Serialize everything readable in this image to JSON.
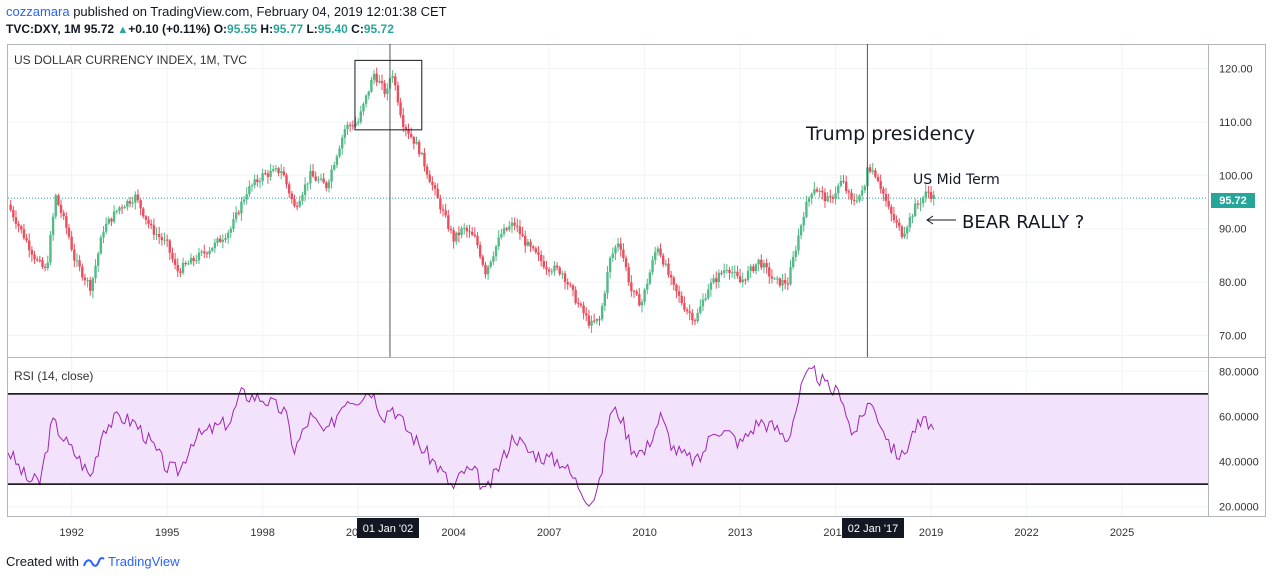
{
  "header": {
    "user": "cozzamara",
    "published": "published on TradingView.com, February 04, 2019 12:01:38 CET",
    "symbol": "TVC:DXY, 1M",
    "last": "95.72",
    "change": "+0.10 (+0.11%)",
    "o_label": "O:",
    "o": "95.55",
    "h_label": "H:",
    "h": "95.77",
    "l_label": "L:",
    "l": "95.40",
    "c_label": "C:",
    "c": "95.72"
  },
  "footer": {
    "created": "Created with",
    "brand": "TradingView"
  },
  "colors": {
    "up": "#53b987",
    "down": "#eb4d5c",
    "rsi": "#9c27b0",
    "rsi_band": "#f3e2fb",
    "price_line": "#26a69a",
    "price_tag": "#26a69a"
  },
  "chart_data": [
    {
      "type": "candlestick",
      "title": "US DOLLAR CURRENCY INDEX, 1M, TVC",
      "ylim": [
        66,
        124
      ],
      "yticks": [
        "70.00",
        "80.00",
        "90.00",
        "100.00",
        "110.00",
        "120.00"
      ],
      "last_price_label": "95.72",
      "last_price": 95.72,
      "x_range": [
        1990.0,
        2027.7
      ],
      "xticks": [
        "1992",
        "1995",
        "1998",
        "2001",
        "2004",
        "2007",
        "2010",
        "2013",
        "2016",
        "2019",
        "2022",
        "2025"
      ],
      "anchors": [
        [
          1990.0,
          94.5
        ],
        [
          1990.9,
          84
        ],
        [
          1991.2,
          82
        ],
        [
          1991.5,
          96
        ],
        [
          1991.9,
          89
        ],
        [
          1992.1,
          84
        ],
        [
          1992.6,
          79
        ],
        [
          1993.0,
          90
        ],
        [
          1993.5,
          94
        ],
        [
          1994.0,
          96
        ],
        [
          1994.5,
          90
        ],
        [
          1995.0,
          87
        ],
        [
          1995.3,
          82
        ],
        [
          1995.8,
          84
        ],
        [
          1996.5,
          87
        ],
        [
          1997.0,
          90
        ],
        [
          1997.5,
          97
        ],
        [
          1998.0,
          100
        ],
        [
          1998.6,
          101
        ],
        [
          1999.0,
          94
        ],
        [
          1999.5,
          100
        ],
        [
          2000.0,
          98
        ],
        [
          2000.6,
          109
        ],
        [
          2001.0,
          110
        ],
        [
          2001.5,
          119
        ],
        [
          2001.9,
          115
        ],
        [
          2002.05,
          120
        ],
        [
          2002.4,
          110
        ],
        [
          2002.9,
          105
        ],
        [
          2003.4,
          97
        ],
        [
          2004.0,
          88
        ],
        [
          2004.3,
          90
        ],
        [
          2004.7,
          88
        ],
        [
          2005.0,
          82
        ],
        [
          2005.5,
          89
        ],
        [
          2005.9,
          91
        ],
        [
          2006.3,
          87
        ],
        [
          2006.9,
          83
        ],
        [
          2007.4,
          82
        ],
        [
          2007.9,
          76
        ],
        [
          2008.3,
          72
        ],
        [
          2008.6,
          73
        ],
        [
          2008.9,
          84
        ],
        [
          2009.2,
          88
        ],
        [
          2009.6,
          78
        ],
        [
          2009.9,
          76
        ],
        [
          2010.4,
          87
        ],
        [
          2010.9,
          79
        ],
        [
          2011.3,
          75
        ],
        [
          2011.6,
          73
        ],
        [
          2012.0,
          79
        ],
        [
          2012.6,
          83
        ],
        [
          2013.0,
          80
        ],
        [
          2013.6,
          84
        ],
        [
          2014.1,
          80
        ],
        [
          2014.5,
          80
        ],
        [
          2015.0,
          93
        ],
        [
          2015.3,
          98
        ],
        [
          2015.8,
          95
        ],
        [
          2016.2,
          99
        ],
        [
          2016.5,
          95
        ],
        [
          2016.9,
          97
        ],
        [
          2017.0,
          102
        ],
        [
          2017.3,
          100
        ],
        [
          2017.7,
          93
        ],
        [
          2018.1,
          89
        ],
        [
          2018.5,
          94
        ],
        [
          2018.9,
          97
        ],
        [
          2019.1,
          95.72
        ]
      ],
      "annotations": {
        "trump": "Trump presidency",
        "midterm": "US Mid Term",
        "bear": "BEAR RALLY ?"
      },
      "crosshair_labels": [
        "01 Jan '02",
        "02 Jan '17"
      ]
    },
    {
      "type": "line",
      "title": "RSI (14, close)",
      "ylim": [
        15,
        85
      ],
      "yticks": [
        "20.0000",
        "40.0000",
        "60.0000",
        "80.0000"
      ],
      "bands": [
        30,
        70
      ],
      "anchors": [
        [
          1990.0,
          45
        ],
        [
          1990.6,
          32
        ],
        [
          1991.0,
          31
        ],
        [
          1991.4,
          58
        ],
        [
          1991.9,
          47
        ],
        [
          1992.2,
          42
        ],
        [
          1992.6,
          33
        ],
        [
          1993.0,
          55
        ],
        [
          1993.5,
          60
        ],
        [
          1994.0,
          57
        ],
        [
          1994.5,
          48
        ],
        [
          1995.0,
          37
        ],
        [
          1995.4,
          36
        ],
        [
          1995.8,
          50
        ],
        [
          1996.5,
          55
        ],
        [
          1997.0,
          58
        ],
        [
          1997.3,
          70
        ],
        [
          1998.0,
          68
        ],
        [
          1998.7,
          62
        ],
        [
          1999.0,
          45
        ],
        [
          1999.5,
          60
        ],
        [
          2000.0,
          52
        ],
        [
          2000.6,
          68
        ],
        [
          2001.0,
          68
        ],
        [
          2001.4,
          72
        ],
        [
          2001.8,
          60
        ],
        [
          2002.05,
          65
        ],
        [
          2002.5,
          55
        ],
        [
          2003.0,
          46
        ],
        [
          2003.5,
          38
        ],
        [
          2004.0,
          28
        ],
        [
          2004.3,
          36
        ],
        [
          2004.7,
          35
        ],
        [
          2005.0,
          26
        ],
        [
          2005.5,
          40
        ],
        [
          2005.9,
          52
        ],
        [
          2006.3,
          45
        ],
        [
          2006.8,
          42
        ],
        [
          2007.4,
          40
        ],
        [
          2007.9,
          30
        ],
        [
          2008.3,
          22
        ],
        [
          2008.6,
          30
        ],
        [
          2008.9,
          62
        ],
        [
          2009.2,
          62
        ],
        [
          2009.6,
          46
        ],
        [
          2010.0,
          44
        ],
        [
          2010.5,
          60
        ],
        [
          2010.9,
          46
        ],
        [
          2011.3,
          42
        ],
        [
          2011.7,
          40
        ],
        [
          2012.2,
          55
        ],
        [
          2012.7,
          52
        ],
        [
          2013.0,
          48
        ],
        [
          2013.6,
          58
        ],
        [
          2014.1,
          55
        ],
        [
          2014.5,
          50
        ],
        [
          2015.0,
          76
        ],
        [
          2015.3,
          80
        ],
        [
          2015.8,
          72
        ],
        [
          2016.2,
          70
        ],
        [
          2016.5,
          52
        ],
        [
          2016.9,
          60
        ],
        [
          2017.0,
          68
        ],
        [
          2017.4,
          58
        ],
        [
          2017.8,
          45
        ],
        [
          2018.1,
          42
        ],
        [
          2018.5,
          55
        ],
        [
          2018.9,
          58
        ],
        [
          2019.1,
          53
        ]
      ]
    }
  ]
}
